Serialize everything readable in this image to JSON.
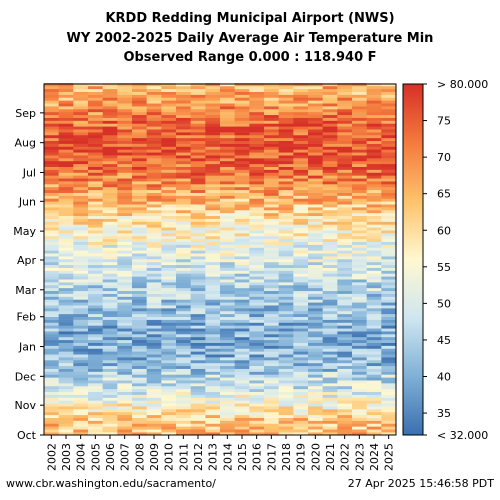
{
  "chart_data": {
    "type": "heatmap",
    "title_lines": [
      "KRDD Redding Municipal Airport (NWS)",
      "WY 2002-2025 Daily Average Air Temperature Min",
      "Observed Range 0.000 : 118.940 F"
    ],
    "x": [
      "2002",
      "2003",
      "2004",
      "2005",
      "2006",
      "2007",
      "2008",
      "2009",
      "2010",
      "2011",
      "2012",
      "2013",
      "2014",
      "2015",
      "2016",
      "2017",
      "2018",
      "2019",
      "2020",
      "2021",
      "2022",
      "2023",
      "2024",
      "2025"
    ],
    "y_ticks": [
      "Oct",
      "Nov",
      "Dec",
      "Jan",
      "Feb",
      "Mar",
      "Apr",
      "May",
      "Jun",
      "Jul",
      "Aug",
      "Sep"
    ],
    "colorbar": {
      "min_label": "< 32.000",
      "max_label": "> 80.000",
      "ticks": [
        "35",
        "40",
        "45",
        "50",
        "55",
        "60",
        "65",
        "70",
        "75"
      ],
      "range": [
        32,
        80
      ],
      "colors": [
        "#3b6fb0",
        "#7fb0d6",
        "#cfe6f0",
        "#fff8d0",
        "#fdc26c",
        "#f47a3d",
        "#d73027"
      ]
    },
    "approx_monthly_min_temp_F": {
      "Oct": 62,
      "Nov": 50,
      "Dec": 41,
      "Jan": 40,
      "Feb": 44,
      "Mar": 48,
      "Apr": 53,
      "May": 60,
      "Jun": 69,
      "Jul": 76,
      "Aug": 74,
      "Sep": 67
    }
  },
  "footer": {
    "left": "www.cbr.washington.edu/sacramento/",
    "right": "27 Apr 2025 15:46:58 PDT"
  }
}
